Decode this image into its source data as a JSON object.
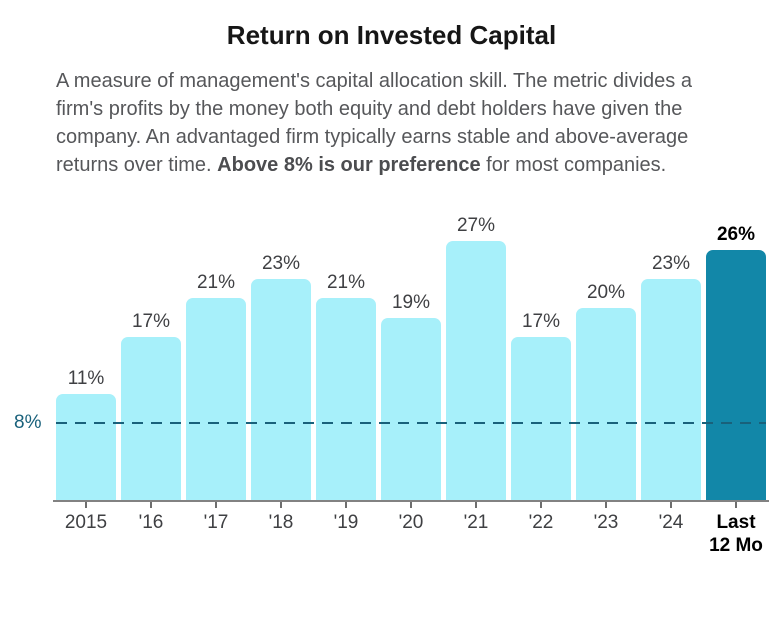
{
  "title": "Return on Invested Capital",
  "description": {
    "text_before": "A measure of management's capital allocation skill. The metric divides a firm's profits by the money both equity and debt holders have given the company. An advantaged firm typically earns stable and above-average returns over time. ",
    "text_bold": "Above 8% is our preference",
    "text_after": " for most companies."
  },
  "chart_data": {
    "type": "bar",
    "categories": [
      "2015",
      "'16",
      "'17",
      "'18",
      "'19",
      "'20",
      "'21",
      "'22",
      "'23",
      "'24",
      "Last 12 Mo"
    ],
    "values": [
      11,
      17,
      21,
      23,
      21,
      19,
      27,
      17,
      20,
      23,
      26
    ],
    "value_labels": [
      "11%",
      "17%",
      "21%",
      "23%",
      "21%",
      "19%",
      "27%",
      "17%",
      "20%",
      "23%",
      "26%"
    ],
    "highlight_index": 10,
    "reference_line": {
      "value": 8,
      "label": "8%"
    },
    "ylim": [
      0,
      29
    ],
    "grid": false,
    "legend": false,
    "colors": {
      "bar": "#a7f0fa",
      "highlight_bar": "#1287a8",
      "reference": "#19617b",
      "axis": "#828282",
      "tick": "#6e6e6e",
      "label": "#3f4043",
      "highlight_label": "#000000"
    }
  }
}
